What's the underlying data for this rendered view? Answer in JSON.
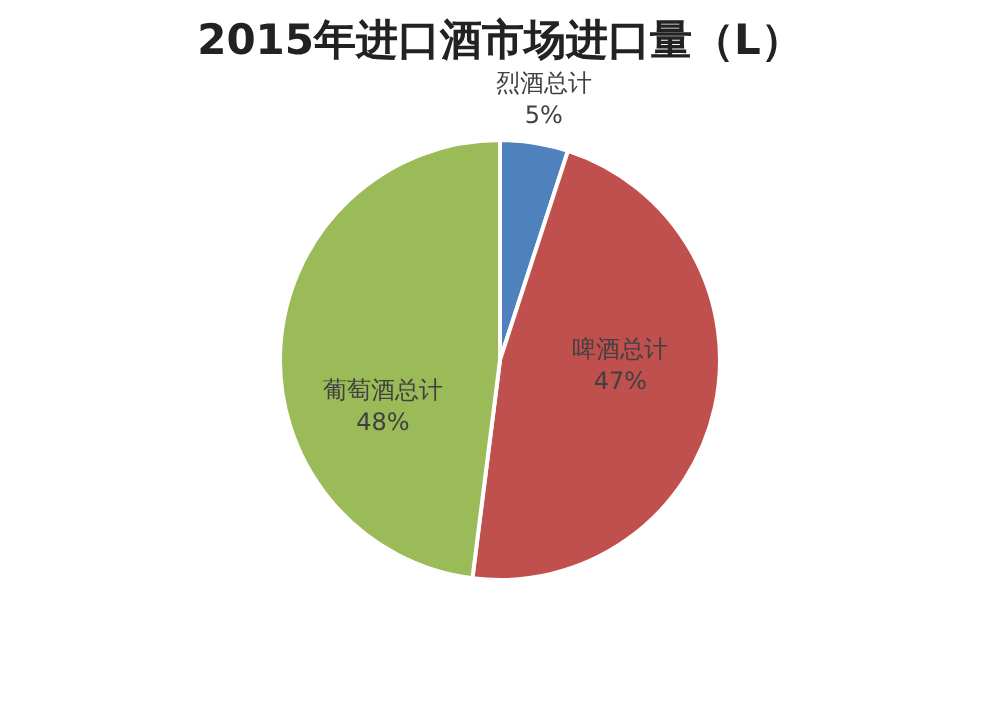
{
  "chart_data": {
    "type": "pie",
    "title": "2015年进口酒市场进口量（L）",
    "categories": [
      "烈酒总计",
      "啤酒总计",
      "葡萄酒总计"
    ],
    "values": [
      5,
      47,
      48
    ],
    "value_labels": [
      "5%",
      "47%",
      "48%"
    ],
    "colors": [
      "#4f81bd",
      "#c0504d",
      "#9bbb59"
    ]
  }
}
